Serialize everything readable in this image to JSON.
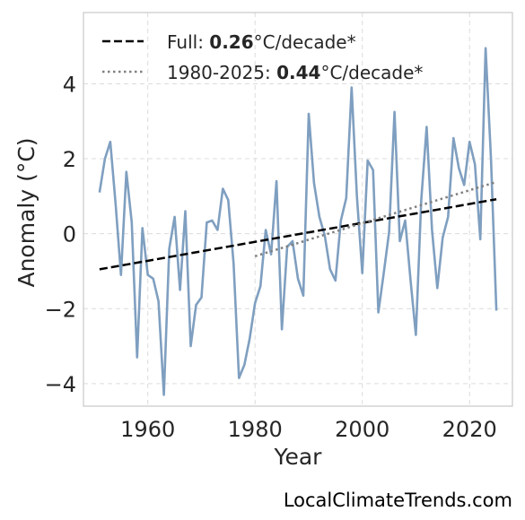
{
  "credit": "LocalClimateTrends.com",
  "colors": {
    "series": "#7f9fc0",
    "trend_full": "#000000",
    "trend_recent": "#808080",
    "grid": "#dcdcdc",
    "frame": "#c8c8c8",
    "text": "#262626"
  },
  "legend": {
    "full": {
      "prefix": "Full: ",
      "value": "0.26",
      "suffix": "°C/decade*"
    },
    "recent": {
      "prefix": "1980-2025: ",
      "value": "0.44",
      "suffix": "°C/decade*"
    }
  },
  "chart_data": {
    "type": "line",
    "xlabel": "Year",
    "ylabel": "Anomaly (°C)",
    "xlim": [
      1948,
      2028
    ],
    "ylim": [
      -4.6,
      5.9
    ],
    "xticks": [
      1960,
      1980,
      2000,
      2020
    ],
    "yticks": [
      -4,
      -2,
      0,
      2,
      4
    ],
    "ytick_labels": [
      "−4",
      "−2",
      "0",
      "2",
      "4"
    ],
    "grid": true,
    "grid_style": "dashed",
    "legend_position": "top-left",
    "series": [
      {
        "style": "solid",
        "x": [
          1951,
          1952,
          1953,
          1954,
          1955,
          1956,
          1957,
          1958,
          1959,
          1960,
          1961,
          1962,
          1963,
          1964,
          1965,
          1966,
          1967,
          1968,
          1969,
          1970,
          1971,
          1972,
          1973,
          1974,
          1975,
          1976,
          1977,
          1978,
          1979,
          1980,
          1981,
          1982,
          1983,
          1984,
          1985,
          1986,
          1987,
          1988,
          1989,
          1990,
          1991,
          1992,
          1993,
          1994,
          1995,
          1996,
          1997,
          1998,
          1999,
          2000,
          2001,
          2002,
          2003,
          2004,
          2005,
          2006,
          2007,
          2008,
          2009,
          2010,
          2011,
          2012,
          2013,
          2014,
          2015,
          2016,
          2017,
          2018,
          2019,
          2020,
          2021,
          2022,
          2023,
          2024,
          2025
        ],
        "y": [
          1.1,
          2.0,
          2.45,
          0.8,
          -1.1,
          1.65,
          0.3,
          -3.3,
          0.15,
          -1.1,
          -1.2,
          -1.8,
          -4.3,
          -0.4,
          0.45,
          -1.5,
          0.6,
          -3.0,
          -1.9,
          -1.7,
          0.3,
          0.35,
          0.1,
          1.2,
          0.9,
          -0.8,
          -3.85,
          -3.5,
          -2.8,
          -1.85,
          -1.4,
          0.1,
          -0.55,
          1.4,
          -2.55,
          -0.35,
          -0.2,
          -1.2,
          -1.65,
          3.2,
          1.35,
          0.45,
          -0.05,
          -0.95,
          -1.25,
          0.35,
          0.95,
          3.9,
          1.0,
          -1.05,
          1.95,
          1.7,
          -2.1,
          -1.05,
          0.05,
          3.25,
          -0.2,
          0.35,
          -1.25,
          -2.7,
          0.9,
          2.85,
          0.1,
          -1.45,
          -0.1,
          0.45,
          2.55,
          1.75,
          1.3,
          2.45,
          1.85,
          -0.15,
          4.95,
          2.0,
          -2.05
        ]
      }
    ],
    "trend_lines": [
      {
        "style": "dashed",
        "x": [
          1951,
          2025
        ],
        "y": [
          -0.95,
          0.92
        ]
      },
      {
        "style": "dotted",
        "x": [
          1980,
          2025
        ],
        "y": [
          -0.6,
          1.38
        ]
      }
    ]
  }
}
